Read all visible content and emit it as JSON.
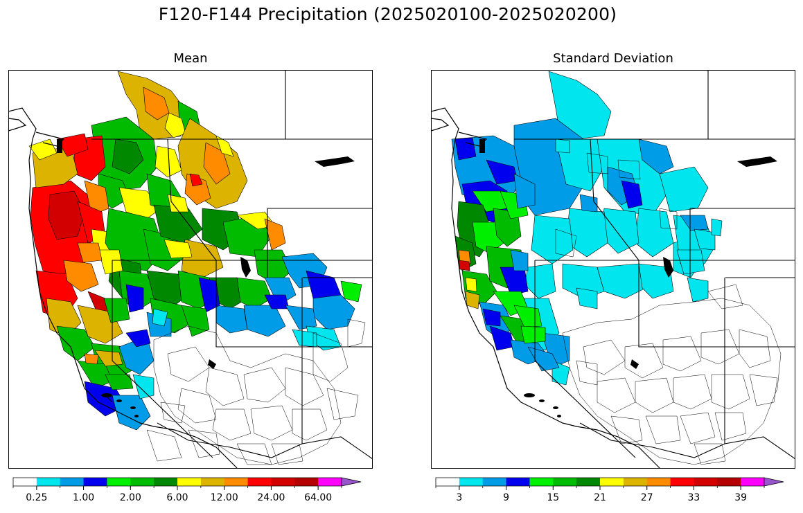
{
  "figure": {
    "title": "F120-F144 Precipitation (2025020100-2025020200)"
  },
  "panels": [
    {
      "title": "Mean",
      "colorbar": {
        "colors": [
          "#ffffff",
          "#00e5ee",
          "#009ce8",
          "#0000ee",
          "#00ee00",
          "#00bb00",
          "#008800",
          "#ffff00",
          "#dcb400",
          "#ff8c00",
          "#ff0000",
          "#d20000",
          "#b40000",
          "#ff00ff",
          "#9955cc"
        ],
        "ticks": [
          "0.25",
          "1.00",
          "2.00",
          "6.00",
          "12.00",
          "24.00",
          "64.00"
        ]
      }
    },
    {
      "title": "Standard Deviation",
      "colorbar": {
        "colors": [
          "#ffffff",
          "#00e5ee",
          "#009ce8",
          "#0000ee",
          "#00ee00",
          "#00bb00",
          "#008800",
          "#ffff00",
          "#dcb400",
          "#ff8c00",
          "#ff0000",
          "#d20000",
          "#b40000",
          "#ff00ff",
          "#9955cc"
        ],
        "ticks": [
          "3",
          "9",
          "15",
          "21",
          "27",
          "33",
          "39"
        ]
      }
    }
  ]
}
